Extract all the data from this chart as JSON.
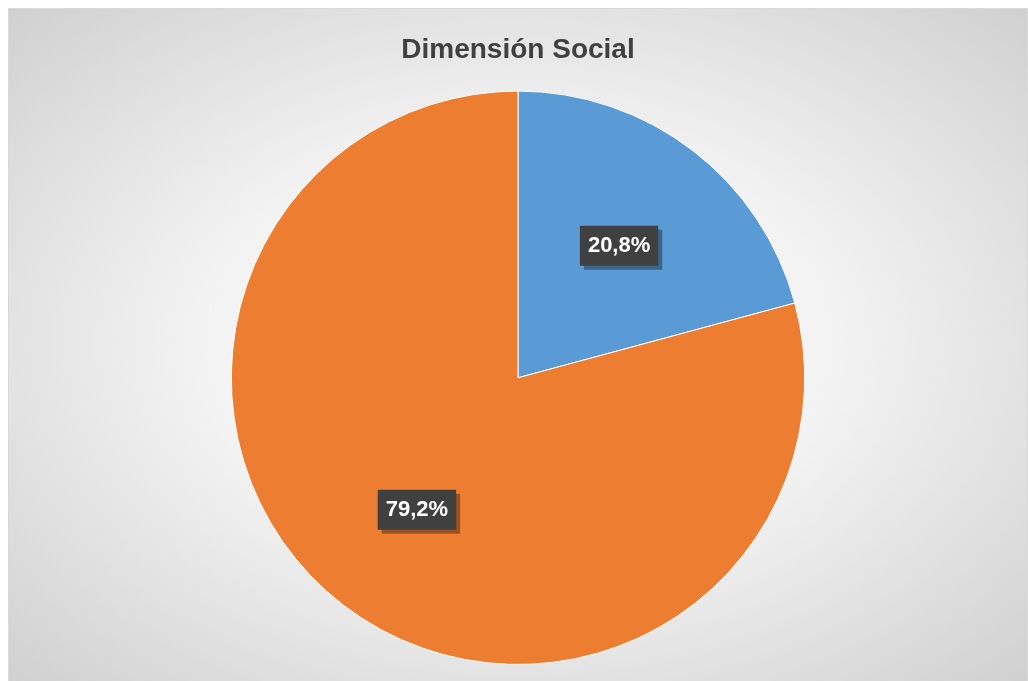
{
  "chart_data": {
    "type": "pie",
    "title": "Dimensión Social",
    "categories": [
      null,
      null
    ],
    "values": [
      20.8,
      79.2
    ],
    "colors": [
      "#5b9bd5",
      "#ed7d31"
    ],
    "value_labels": [
      "20,8%",
      "79,2%"
    ],
    "legend": false
  }
}
